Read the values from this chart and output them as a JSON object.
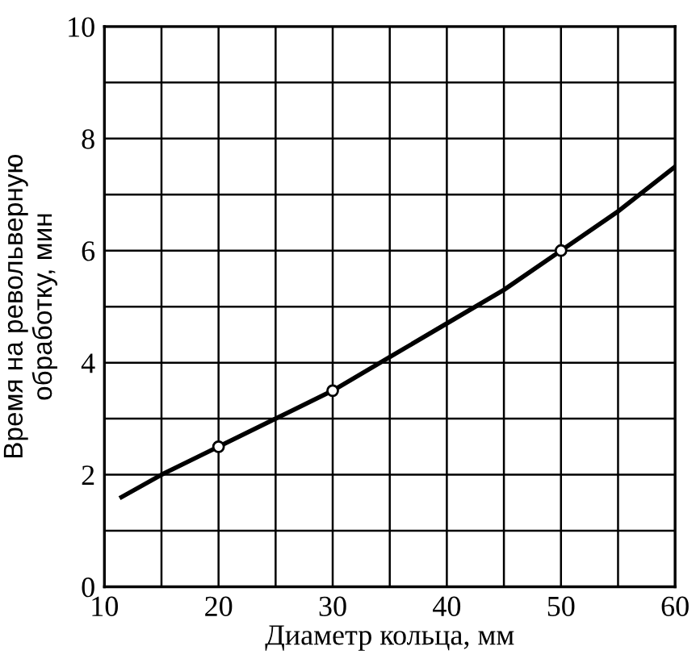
{
  "chart_data": {
    "type": "line",
    "xlabel": "Диаметр кольца, мм",
    "ylabel": "Время на револьверную\nобработку, мин",
    "xlim": [
      10,
      60
    ],
    "ylim": [
      0,
      10
    ],
    "xticks": [
      10,
      {
        "value": 15,
        "label": null
      },
      20,
      {
        "value": 25,
        "label": null
      },
      30,
      {
        "value": 35,
        "label": null
      },
      40,
      {
        "value": 45,
        "label": null
      },
      50,
      {
        "value": 55,
        "label": null
      },
      60
    ],
    "yticks": [
      0,
      {
        "value": 1,
        "label": null
      },
      2,
      {
        "value": 3,
        "label": null
      },
      4,
      {
        "value": 5,
        "label": null
      },
      6,
      {
        "value": 7,
        "label": null
      },
      8,
      {
        "value": 9,
        "label": null
      },
      10
    ],
    "grid": true,
    "series": [
      {
        "color": "#000000",
        "marker": "none",
        "x": [
          11.5,
          15,
          20,
          25,
          30,
          35,
          40,
          45,
          50,
          55,
          60
        ],
        "values": [
          1.6,
          2.0,
          2.5,
          3.0,
          3.5,
          4.1,
          4.7,
          5.3,
          6.0,
          6.7,
          7.5
        ]
      },
      {
        "type": "scatter",
        "color": "#000000",
        "marker": "circle",
        "x": [
          20,
          30,
          50
        ],
        "values": [
          2.5,
          3.5,
          6.0
        ]
      }
    ]
  }
}
